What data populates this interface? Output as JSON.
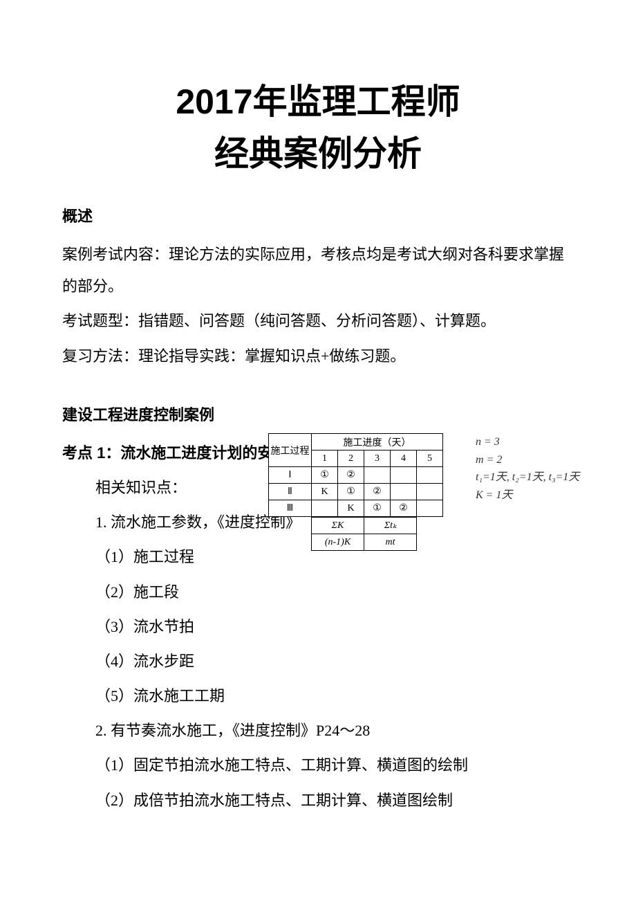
{
  "title": {
    "line1": "2017年监理工程师",
    "line2": "经典案例分析"
  },
  "overview": {
    "heading": "概述",
    "p1": "案例考试内容：理论方法的实际应用，考核点均是考试大纲对各科要求掌握的部分。",
    "p2": "考试题型：指错题、问答题（纯问答题、分析问答题）、计算题。",
    "p3": "复习方法：理论指导实践：掌握知识点+做练习题。"
  },
  "section1": {
    "heading": "建设工程进度控制案例",
    "point1": "考点 1：流水施工进度计划的安排",
    "related": "相关知识点：",
    "item1_title": "1. 流水施工参数，《进度控制》",
    "item1_1": "（1）施工过程",
    "item1_2": "（2）施工段",
    "item1_3": "（3）流水节拍",
    "item1_4": "（4）流水步距",
    "item1_5": "（5）流水施工工期",
    "item2_title": "2. 有节奏流水施工，《进度控制》P24～28",
    "item2_1": "（1）固定节拍流水施工特点、工期计算、横道图的绘制",
    "item2_2": "（2）成倍节拍流水施工特点、工期计算、横道图绘制"
  },
  "diagram": {
    "table": {
      "proc_header": "施工过程",
      "schedule_header": "施工进度（天）",
      "days": [
        "1",
        "2",
        "3",
        "4",
        "5"
      ],
      "rows": [
        {
          "label": "Ⅰ",
          "cells": [
            "①",
            "②",
            "",
            "",
            ""
          ]
        },
        {
          "label": "Ⅱ",
          "cells": [
            "K",
            "①",
            "②",
            "",
            ""
          ]
        },
        {
          "label": "Ⅲ",
          "cells": [
            "",
            "K",
            "①",
            "②",
            ""
          ]
        }
      ],
      "summary": {
        "r1c1": "ΣK",
        "r1c2": "Σtₖ",
        "r2c1": "(n-1)K",
        "r2c2": "mt"
      }
    },
    "annotations": {
      "a1": "n = 3",
      "a2": "m = 2",
      "a3": "t₁=1天, t₂=1天, t₃=1天",
      "a4": "K = 1天"
    },
    "colors": {
      "border": "#000000",
      "text": "#000000",
      "annotation_text": "#333333",
      "bg": "#ffffff"
    }
  }
}
